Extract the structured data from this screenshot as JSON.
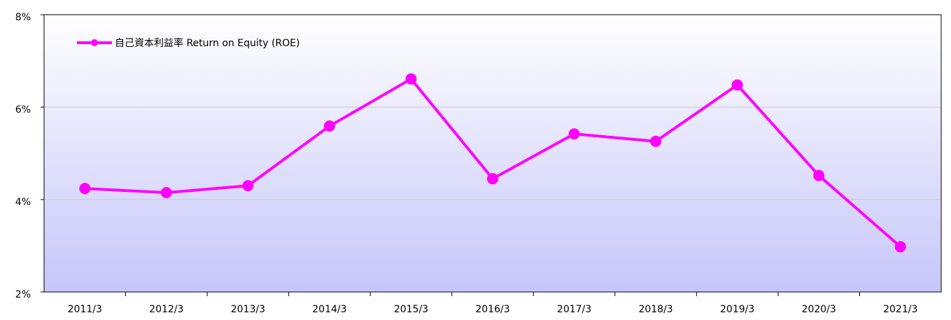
{
  "chart_data": {
    "type": "line",
    "categories": [
      "2011/3",
      "2012/3",
      "2013/3",
      "2014/3",
      "2015/3",
      "2016/3",
      "2017/3",
      "2018/3",
      "2019/3",
      "2020/3",
      "2021/3"
    ],
    "series": [
      {
        "name": "自己資本利益率 Return on Equity (ROE)",
        "color": "#ff00ff",
        "values": [
          4.24,
          4.15,
          4.3,
          5.59,
          6.61,
          4.45,
          5.42,
          5.26,
          6.48,
          4.52,
          2.98
        ]
      }
    ],
    "ylim": [
      2,
      8
    ],
    "yticks": [
      {
        "value": 2,
        "label": "2%"
      },
      {
        "value": 4,
        "label": "4%"
      },
      {
        "value": 6,
        "label": "6%"
      },
      {
        "value": 8,
        "label": "8%"
      }
    ],
    "grid": true,
    "legend": "upper left"
  }
}
